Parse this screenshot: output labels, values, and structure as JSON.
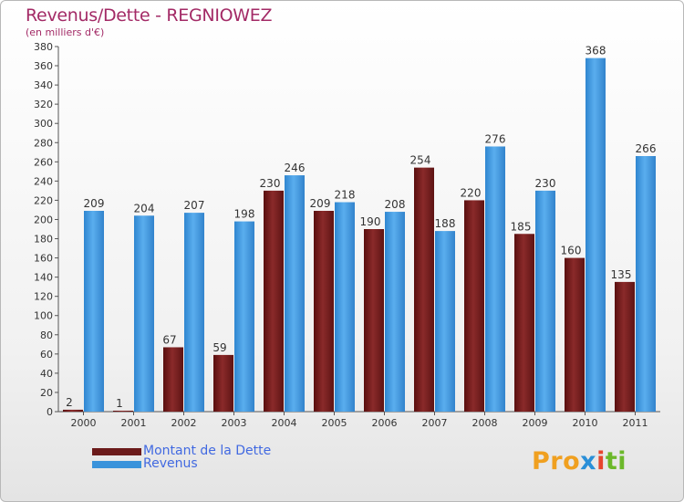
{
  "chart_data": {
    "type": "bar",
    "title": "Revenus/Dette - REGNIOWEZ",
    "subtitle": "(en milliers d'€)",
    "categories": [
      "2000",
      "2001",
      "2002",
      "2003",
      "2004",
      "2005",
      "2006",
      "2007",
      "2008",
      "2009",
      "2010",
      "2011"
    ],
    "series": [
      {
        "name": "Montant de la Dette",
        "color": "#6b1a1a",
        "values": [
          2,
          1,
          67,
          59,
          230,
          209,
          190,
          254,
          220,
          185,
          160,
          135
        ]
      },
      {
        "name": "Revenus",
        "color": "#3a93db",
        "values": [
          209,
          204,
          207,
          198,
          246,
          218,
          208,
          188,
          276,
          230,
          368,
          266
        ]
      }
    ],
    "ylim": [
      0,
      380
    ],
    "yticks": [
      0,
      20,
      40,
      60,
      80,
      100,
      120,
      140,
      160,
      180,
      200,
      220,
      240,
      260,
      280,
      300,
      320,
      340,
      360,
      380
    ],
    "grid": false,
    "legend_position": "bottom-left"
  },
  "logo": {
    "p1": "Pro",
    "p2": "x",
    "p3": "i",
    "p4": "ti"
  }
}
